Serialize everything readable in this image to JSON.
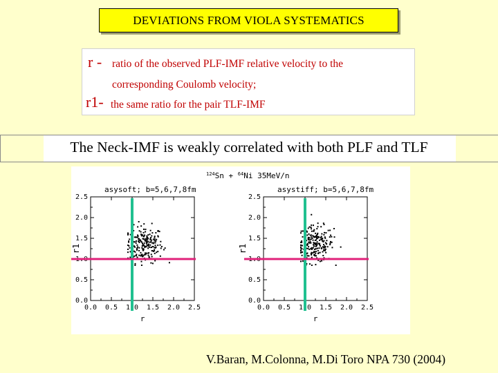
{
  "title": "DEVIATIONS FROM VIOLA SYSTEMATICS",
  "definitions": {
    "r_symbol": "r -",
    "r_text_line1": "ratio of the observed PLF-IMF relative velocity to the",
    "r_text_line2": "corresponding  Coulomb velocity;",
    "r1_symbol": "r1-",
    "r1_text": "the same ratio for the pair TLF-IMF"
  },
  "statement": "The Neck-IMF is weakly correlated with both PLF and TLF",
  "figure_header": {
    "reaction_a": "124",
    "reaction_b": "Sn",
    "reaction_c": " + ",
    "reaction_d": "64",
    "reaction_e": "Ni",
    "reaction_f": " 35MeV/n"
  },
  "colors": {
    "vertical_line": "#20c090",
    "horizontal_line": "#e0207a",
    "dots": "#000000",
    "title_bg": "#ffff00",
    "page_bg": "#ffffcc",
    "definition_text": "#c00000"
  },
  "chart_data": [
    {
      "type": "scatter",
      "title": "asysoft; b=5,6,7,8fm",
      "xlabel": "r",
      "ylabel": "r1",
      "xlim": [
        0.0,
        2.5
      ],
      "ylim": [
        0.0,
        2.5
      ],
      "xticks": [
        "0.0",
        "0.5",
        "1.0",
        "1.5",
        "2.0",
        "2.5"
      ],
      "yticks": [
        "0.0",
        "0.5",
        "1.0",
        "1.5",
        "2.0",
        "2.5"
      ],
      "vline": 1.0,
      "hline": 1.0,
      "cluster": {
        "center": [
          1.3,
          1.35
        ],
        "spread": [
          0.22,
          0.22
        ],
        "count": 210,
        "x_range": [
          0.9,
          1.9
        ],
        "y_range": [
          0.85,
          2.2
        ]
      }
    },
    {
      "type": "scatter",
      "title": "asystiff; b=5,6,7,8fm",
      "xlabel": "r",
      "ylabel": "r1",
      "xlim": [
        0.0,
        2.5
      ],
      "ylim": [
        0.0,
        2.5
      ],
      "xticks": [
        "0.0",
        "0.5",
        "1.0",
        "1.5",
        "2.0",
        "2.5"
      ],
      "yticks": [
        "0.0",
        "0.5",
        "1.0",
        "1.5",
        "2.0",
        "2.5"
      ],
      "vline": 1.0,
      "hline": 1.0,
      "cluster": {
        "center": [
          1.25,
          1.35
        ],
        "spread": [
          0.22,
          0.22
        ],
        "count": 210,
        "x_range": [
          0.9,
          2.0
        ],
        "y_range": [
          0.85,
          2.1
        ]
      }
    }
  ],
  "citation": "V.Baran, M.Colonna, M.Di Toro  NPA 730 (2004)"
}
